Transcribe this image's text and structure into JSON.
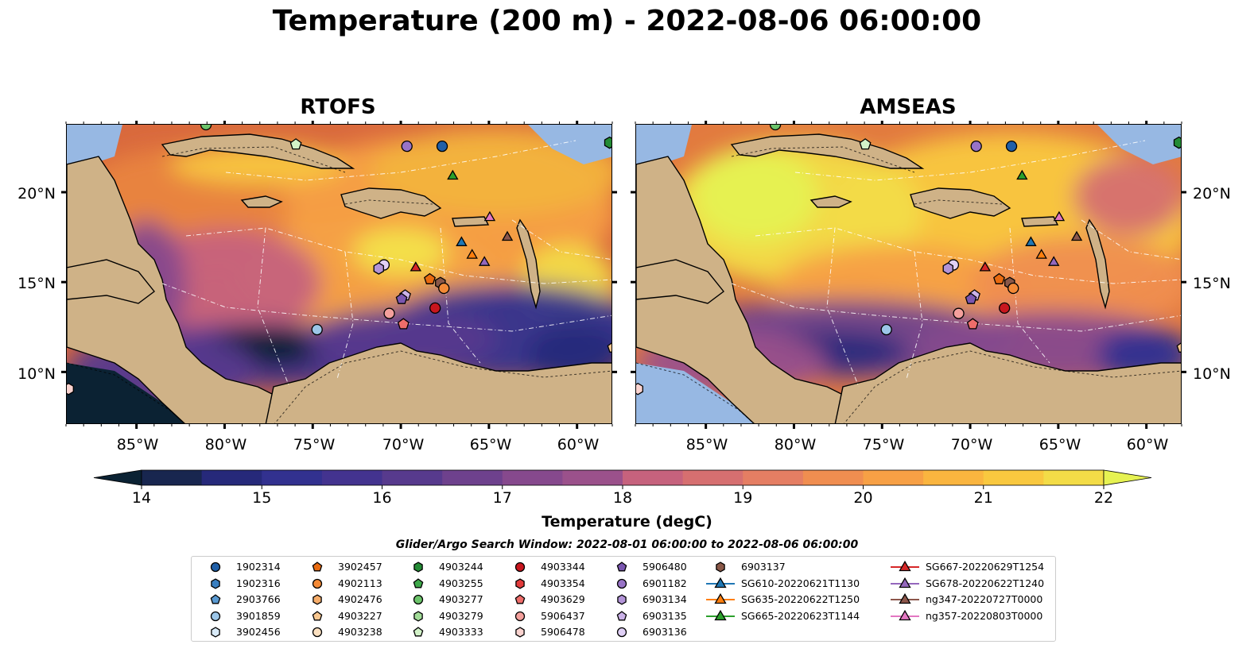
{
  "title": "Temperature (200 m) - 2022-08-06 06:00:00",
  "panels": [
    {
      "title": "RTOFS"
    },
    {
      "title": "AMSEAS"
    }
  ],
  "axes": {
    "lat_ticks": [
      "10°N",
      "15°N",
      "20°N"
    ],
    "lon_ticks": [
      "85°W",
      "80°W",
      "75°W",
      "70°W",
      "65°W",
      "60°W"
    ]
  },
  "colorbar": {
    "label": "Temperature (degC)",
    "ticks": [
      "14",
      "15",
      "16",
      "17",
      "18",
      "19",
      "20",
      "21",
      "22"
    ],
    "min": 14,
    "max": 22,
    "colors": [
      "#0b2233",
      "#18264f",
      "#26297a",
      "#32318f",
      "#43338f",
      "#573a8d",
      "#6e418d",
      "#86498d",
      "#9b518b",
      "#b25a86",
      "#c6627d",
      "#d66f70",
      "#e57e63",
      "#f08e50",
      "#f7a045",
      "#fab53f",
      "#f9c83f",
      "#f3dc47",
      "#e6f252"
    ]
  },
  "search_window": "Glider/Argo Search Window: 2022-08-01 06:00:00 to 2022-08-06 06:00:00",
  "legend": [
    {
      "label": "1902314",
      "marker": "circle",
      "color": "#1f5fa8"
    },
    {
      "label": "1902316",
      "marker": "hexagon",
      "color": "#3a7fc0"
    },
    {
      "label": "2903766",
      "marker": "pentagon",
      "color": "#5a9ad2"
    },
    {
      "label": "3901859",
      "marker": "circle",
      "color": "#9cc6e8"
    },
    {
      "label": "3902456",
      "marker": "hexagon",
      "color": "#d8eaf8"
    },
    {
      "label": "3902457",
      "marker": "pentagon",
      "color": "#e86a10"
    },
    {
      "label": "4902113",
      "marker": "circle",
      "color": "#f48a36"
    },
    {
      "label": "4902476",
      "marker": "hexagon",
      "color": "#f6ad6a"
    },
    {
      "label": "4903227",
      "marker": "pentagon",
      "color": "#f8c790"
    },
    {
      "label": "4903238",
      "marker": "circle",
      "color": "#fbe0c0"
    },
    {
      "label": "4903244",
      "marker": "hexagon",
      "color": "#238b35"
    },
    {
      "label": "4903255",
      "marker": "pentagon",
      "color": "#3ea84a"
    },
    {
      "label": "4903277",
      "marker": "circle",
      "color": "#6cc46b"
    },
    {
      "label": "4903279",
      "marker": "hexagon",
      "color": "#a2dc98"
    },
    {
      "label": "4903333",
      "marker": "pentagon",
      "color": "#d2f2c8"
    },
    {
      "label": "4903344",
      "marker": "circle",
      "color": "#c8161e"
    },
    {
      "label": "4903354",
      "marker": "hexagon",
      "color": "#e23b3b"
    },
    {
      "label": "4903629",
      "marker": "pentagon",
      "color": "#ee6d6a"
    },
    {
      "label": "5906437",
      "marker": "circle",
      "color": "#f4a09c"
    },
    {
      "label": "5906478",
      "marker": "hexagon",
      "color": "#fad3cf"
    },
    {
      "label": "5906480",
      "marker": "pentagon",
      "color": "#7a56b0"
    },
    {
      "label": "6901182",
      "marker": "circle",
      "color": "#9873c6"
    },
    {
      "label": "6903134",
      "marker": "hexagon",
      "color": "#b394d8"
    },
    {
      "label": "6903135",
      "marker": "pentagon",
      "color": "#cbb2e8"
    },
    {
      "label": "6903136",
      "marker": "circle",
      "color": "#e0d0f6"
    },
    {
      "label": "6903137",
      "marker": "hexagon",
      "color": "#8a5848"
    },
    {
      "label": "SG610-20220621T1130",
      "marker": "triangle-line",
      "color": "#1f77b4"
    },
    {
      "label": "SG635-20220622T1250",
      "marker": "triangle-line",
      "color": "#ff7f0e"
    },
    {
      "label": "SG665-20220623T1144",
      "marker": "triangle-line",
      "color": "#2ca02c"
    },
    {
      "label": "SG667-20220629T1254",
      "marker": "triangle-line",
      "color": "#d62728"
    },
    {
      "label": "SG678-20220622T1240",
      "marker": "triangle-line",
      "color": "#9467bd"
    },
    {
      "label": "ng347-20220727T0000",
      "marker": "triangle-line",
      "color": "#8c564b"
    },
    {
      "label": "ng357-20220803T0000",
      "marker": "triangle-line",
      "color": "#e377c2"
    }
  ],
  "markers": [
    {
      "lon": -67.7,
      "lat": 22.6,
      "marker": "circle",
      "color": "#1f5fa8"
    },
    {
      "lon": -69.7,
      "lat": 22.6,
      "marker": "circle",
      "color": "#9873c6"
    },
    {
      "lon": -81.1,
      "lat": 23.8,
      "marker": "circle",
      "color": "#6cc46b"
    },
    {
      "lon": -76.0,
      "lat": 22.7,
      "marker": "pentagon",
      "color": "#d2f2c8"
    },
    {
      "lon": -58.2,
      "lat": 22.8,
      "marker": "hexagon",
      "color": "#238b35"
    },
    {
      "lon": -67.1,
      "lat": 21.0,
      "marker": "triangle",
      "color": "#2ca02c"
    },
    {
      "lon": -65.0,
      "lat": 18.7,
      "marker": "triangle",
      "color": "#e377c2"
    },
    {
      "lon": -64.0,
      "lat": 17.6,
      "marker": "triangle",
      "color": "#8c564b"
    },
    {
      "lon": -66.6,
      "lat": 17.3,
      "marker": "triangle",
      "color": "#1f77b4"
    },
    {
      "lon": -66.0,
      "lat": 16.6,
      "marker": "triangle",
      "color": "#ff7f0e"
    },
    {
      "lon": -65.3,
      "lat": 16.2,
      "marker": "triangle",
      "color": "#9467bd"
    },
    {
      "lon": -69.2,
      "lat": 15.9,
      "marker": "triangle",
      "color": "#d62728"
    },
    {
      "lon": -71.0,
      "lat": 16.0,
      "marker": "circle",
      "color": "#e0d0f6"
    },
    {
      "lon": -71.3,
      "lat": 15.8,
      "marker": "hexagon",
      "color": "#b394d8"
    },
    {
      "lon": -68.4,
      "lat": 15.2,
      "marker": "pentagon",
      "color": "#e86a10"
    },
    {
      "lon": -67.8,
      "lat": 15.0,
      "marker": "hexagon",
      "color": "#8a5848"
    },
    {
      "lon": -67.6,
      "lat": 14.7,
      "marker": "circle",
      "color": "#f48a36"
    },
    {
      "lon": -69.8,
      "lat": 14.3,
      "marker": "pentagon",
      "color": "#cbb2e8"
    },
    {
      "lon": -70.0,
      "lat": 14.1,
      "marker": "pentagon",
      "color": "#7a56b0"
    },
    {
      "lon": -68.1,
      "lat": 13.6,
      "marker": "circle",
      "color": "#c8161e"
    },
    {
      "lon": -70.7,
      "lat": 13.3,
      "marker": "circle",
      "color": "#f4a09c"
    },
    {
      "lon": -69.9,
      "lat": 12.7,
      "marker": "pentagon",
      "color": "#ee6d6a"
    },
    {
      "lon": -74.8,
      "lat": 12.4,
      "marker": "circle",
      "color": "#9cc6e8"
    },
    {
      "lon": -88.9,
      "lat": 9.1,
      "marker": "hexagon",
      "color": "#fad3cf"
    },
    {
      "lon": -58.0,
      "lat": 11.4,
      "marker": "pentagon",
      "color": "#f8c790"
    }
  ]
}
